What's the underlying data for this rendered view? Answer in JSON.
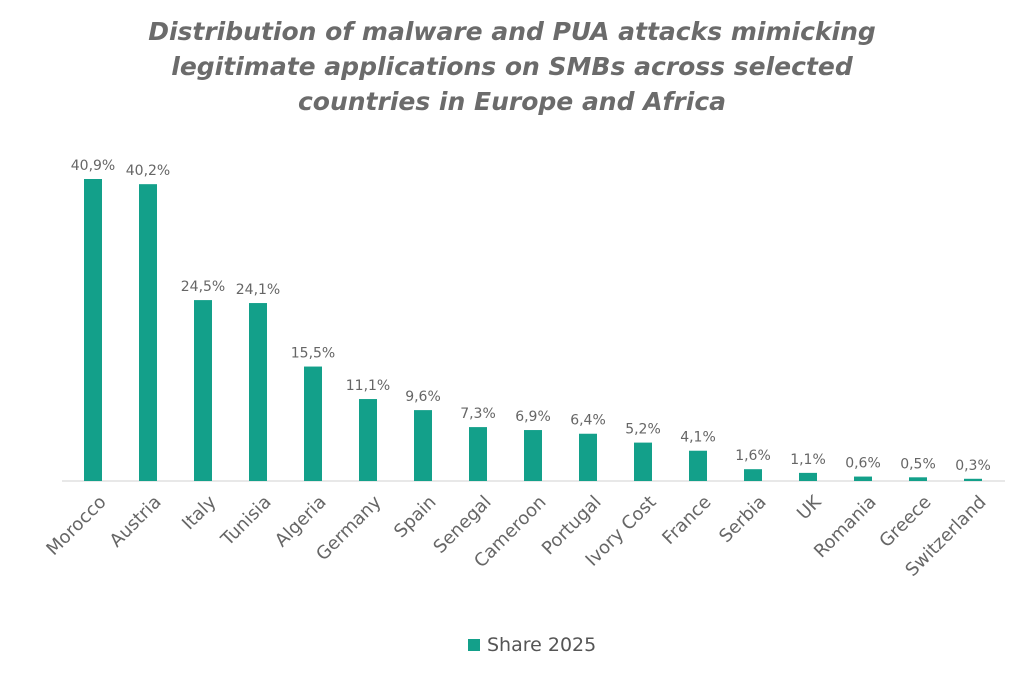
{
  "chart_data": {
    "type": "bar",
    "title": "Distribution of malware and PUA attacks mimicking legitimate applications on SMBs across selected countries in Europe and Africa",
    "title_lines": [
      "Distribution of malware and PUA attacks mimicking",
      "legitimate applications on SMBs across selected",
      "countries in Europe and Africa"
    ],
    "categories": [
      "Morocco",
      "Austria",
      "Italy",
      "Tunisia",
      "Algeria",
      "Germany",
      "Spain",
      "Senegal",
      "Cameroon",
      "Portugal",
      "Ivory Cost",
      "France",
      "Serbia",
      "UK",
      "Romania",
      "Greece",
      "Switzerland"
    ],
    "series": [
      {
        "name": "Share 2025",
        "values": [
          40.9,
          40.2,
          24.5,
          24.1,
          15.5,
          11.1,
          9.6,
          7.3,
          6.9,
          6.4,
          5.2,
          4.1,
          1.6,
          1.1,
          0.6,
          0.5,
          0.3
        ],
        "color": "#13a08a"
      }
    ],
    "data_labels": [
      "40,9%",
      "40,2%",
      "24,5%",
      "24,1%",
      "15,5%",
      "11,1%",
      "9,6%",
      "7,3%",
      "6,9%",
      "6,4%",
      "5,2%",
      "4,1%",
      "1,6%",
      "1,1%",
      "0,6%",
      "0,5%",
      "0,3%"
    ],
    "xlabel": "",
    "ylabel": "",
    "ylim": [
      0,
      41
    ],
    "grid": false,
    "legend_position": "bottom",
    "axis_color": "#d0d0d0"
  }
}
